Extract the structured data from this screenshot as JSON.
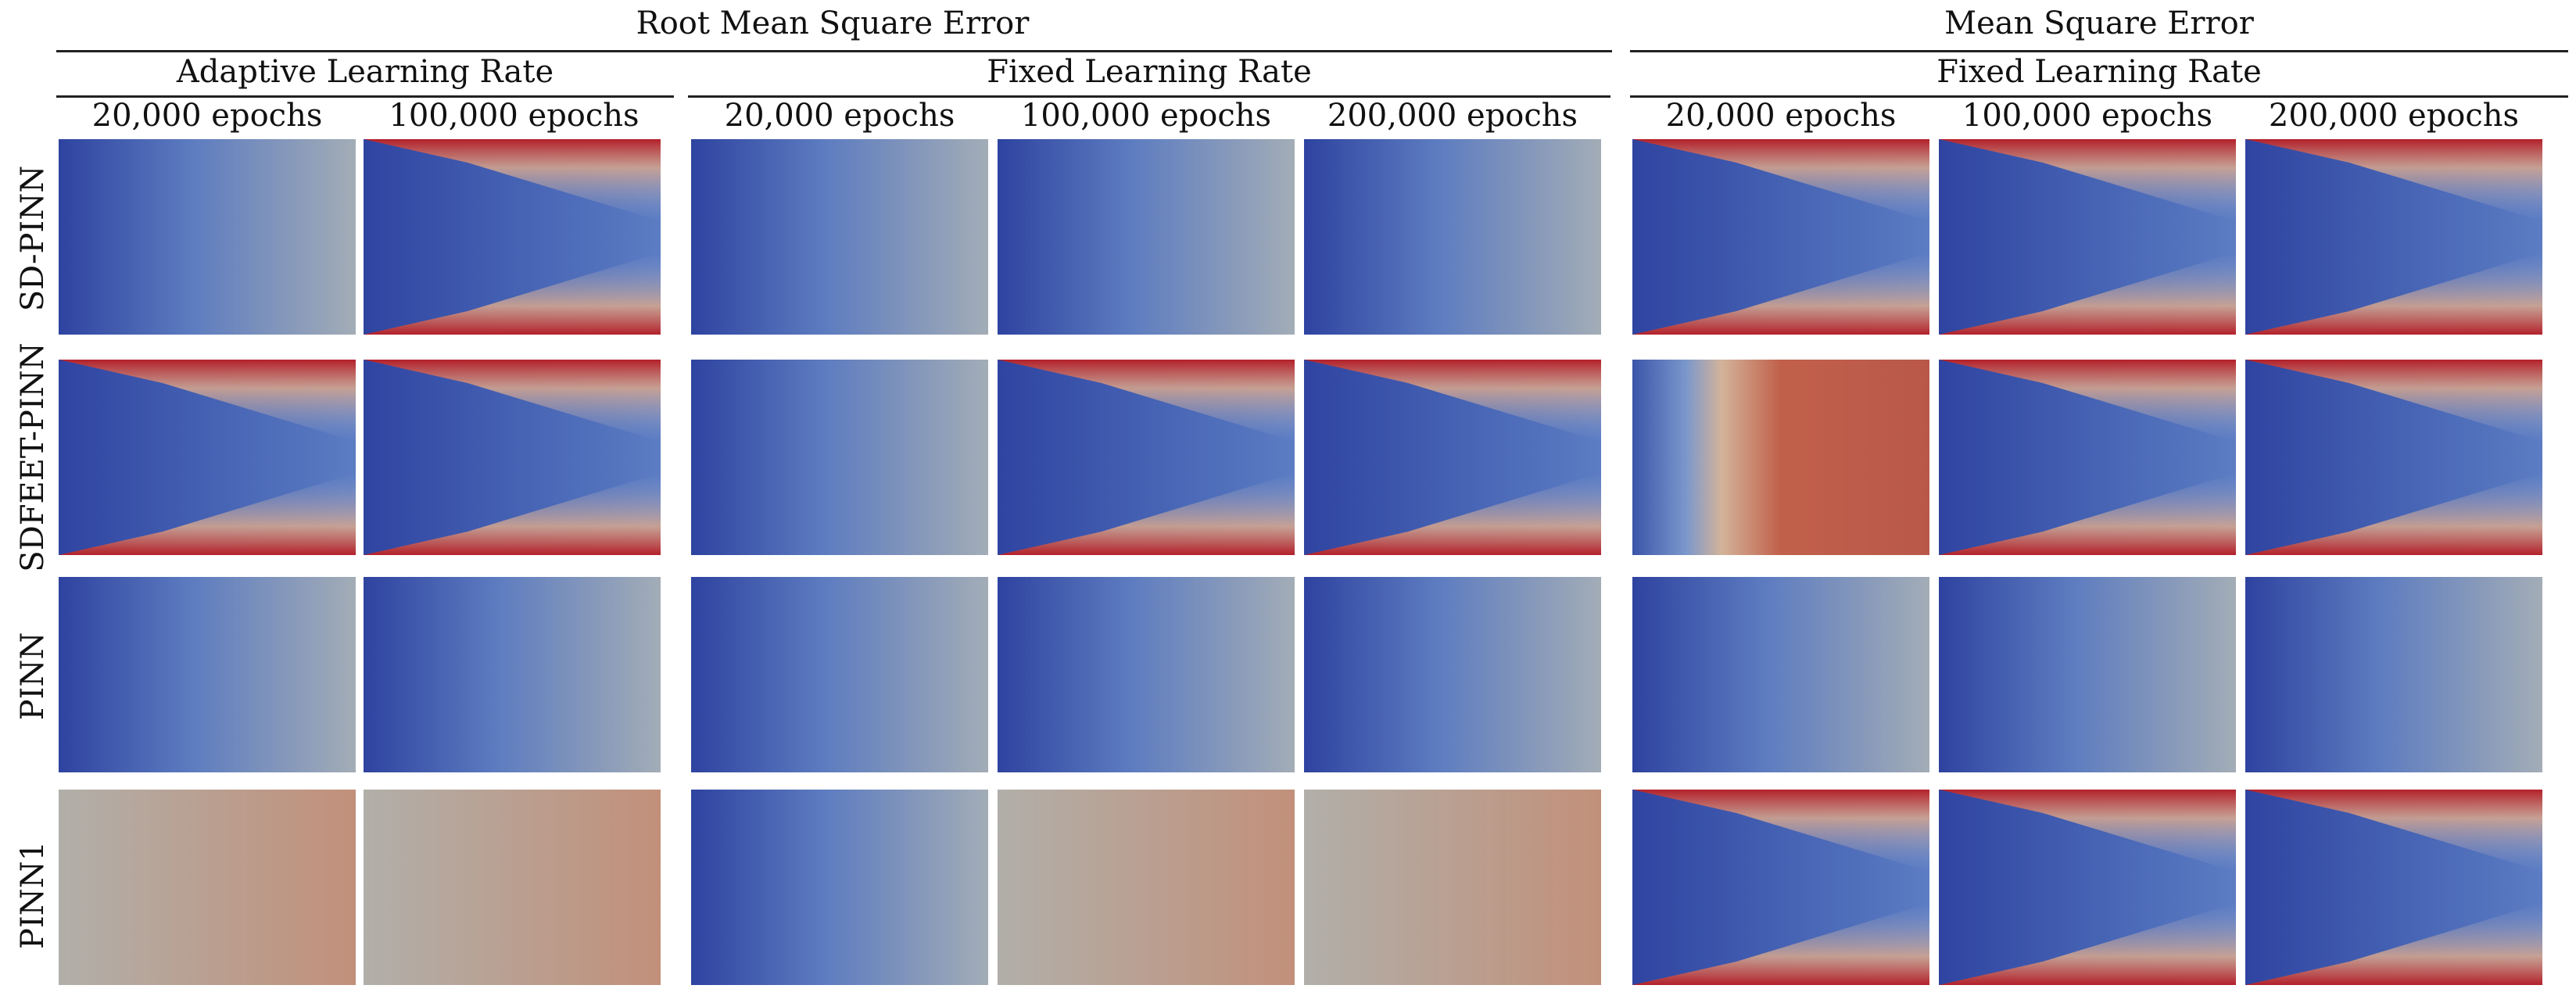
{
  "headers": {
    "top": [
      "Root Mean Square Error",
      "Mean Square Error"
    ],
    "mid": [
      "Adaptive Learning Rate",
      "Fixed Learning Rate",
      "Fixed Learning Rate"
    ],
    "epochs": [
      "20,000 epochs",
      "100,000 epochs",
      "20,000 epochs",
      "100,000 epochs",
      "200,000 epochs",
      "20,000 epochs",
      "100,000 epochs",
      "200,000 epochs"
    ]
  },
  "rows": [
    "SD-PINN",
    "SDFEET-PINN",
    "PINN",
    "PINN1"
  ],
  "colormap": {
    "low": "#3a4fa3",
    "mid": "#b6b1ab",
    "high": "#b3202a"
  },
  "fields": [
    [
      "gradient_x",
      "wedge",
      "gradient_x",
      "gradient_x",
      "gradient_x",
      "wedge",
      "wedge",
      "wedge"
    ],
    [
      "wedge",
      "wedge",
      "gradient_x",
      "wedge",
      "wedge",
      "band_x",
      "wedge",
      "wedge"
    ],
    [
      "gradient_x",
      "gradient_x",
      "gradient_x",
      "gradient_x",
      "gradient_x",
      "gradient_x",
      "gradient_x",
      "gradient_x"
    ],
    [
      "uniform_warm",
      "uniform_warm",
      "gradient_x",
      "uniform_warm",
      "uniform_warm",
      "wedge",
      "wedge",
      "wedge"
    ]
  ]
}
